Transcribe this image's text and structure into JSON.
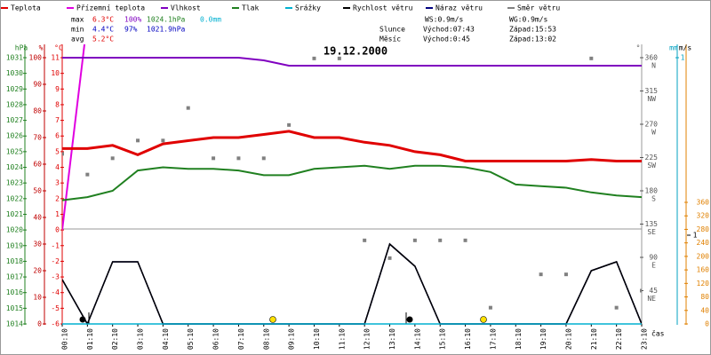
{
  "chart_data": {
    "type": "line",
    "title": "19.12.2000",
    "stats": [
      [
        "max",
        "6.3°C",
        "100%",
        "1024.1hPa",
        "0.0mm"
      ],
      [
        "min",
        "4.4°C",
        "97%",
        "1021.9hPa"
      ],
      [
        "avg",
        "5.2°C"
      ]
    ],
    "info": [
      [
        "WS:0.9m/s",
        "WG:0.9m/s"
      ],
      [
        "Slunce",
        "Východ:07:43",
        "Západ:15:53"
      ],
      [
        "Měsíc",
        "Východ:0:45",
        "Západ:13:02"
      ]
    ],
    "x_label": "čas",
    "categories": [
      "00:10",
      "01:10",
      "02:10",
      "03:10",
      "04:10",
      "05:10",
      "06:10",
      "07:10",
      "08:10",
      "09:10",
      "10:10",
      "11:10",
      "12:10",
      "13:10",
      "14:10",
      "15:10",
      "16:10",
      "17:10",
      "18:10",
      "19:10",
      "20:10",
      "21:10",
      "22:10",
      "23:10"
    ],
    "axes": {
      "pressure": {
        "label": "hPa",
        "color": "#208020",
        "ylim": [
          1014,
          1031
        ],
        "yticks": [
          1014,
          1015,
          1016,
          1017,
          1018,
          1019,
          1020,
          1021,
          1022,
          1023,
          1024,
          1025,
          1026,
          1027,
          1028,
          1029,
          1030,
          1031
        ]
      },
      "humidity": {
        "label": "%",
        "color": "#c00000",
        "ylim": [
          0,
          100
        ],
        "yticks": [
          0,
          10,
          20,
          30,
          40,
          50,
          60,
          70,
          80,
          90,
          100
        ]
      },
      "temp": {
        "label": "°C",
        "color": "#e00000",
        "ylim": [
          -6,
          11
        ],
        "yticks": [
          -6,
          -5,
          -4,
          -3,
          -2,
          -1,
          0,
          1,
          2,
          3,
          4,
          5,
          6,
          7,
          8,
          9,
          10,
          11
        ]
      },
      "direction": {
        "label": "°",
        "color": "#555555",
        "ylim": [
          0,
          360
        ],
        "yticks": [
          45,
          90,
          135,
          180,
          225,
          270,
          315,
          360
        ],
        "tick_names": [
          "NE",
          "E",
          "SE",
          "S",
          "SW",
          "W",
          "NW",
          "N"
        ]
      },
      "rain": {
        "label": "mm",
        "color": "#00a0c0",
        "ylim": [
          0,
          1
        ],
        "yticks": [
          1
        ]
      },
      "wind": {
        "label": "m/s",
        "color": "#000000",
        "ylim": [
          0,
          1
        ],
        "yticks": [
          1
        ]
      },
      "extra": {
        "color": "#e08000",
        "ylim": [
          0,
          360
        ],
        "yticks": [
          0,
          40,
          80,
          120,
          160,
          200,
          240,
          280,
          320,
          360
        ]
      }
    },
    "series": [
      {
        "name": "Teplota",
        "color": "#e00000",
        "axis": "temp",
        "values": [
          5.2,
          5.2,
          5.4,
          4.8,
          5.5,
          5.7,
          5.9,
          5.9,
          6.1,
          6.3,
          5.9,
          5.9,
          5.6,
          5.4,
          5.0,
          4.8,
          4.4,
          4.4,
          4.4,
          4.4,
          4.4,
          4.5,
          4.4,
          4.4
        ]
      },
      {
        "name": "Přízemní teplota",
        "color": "#e000e0",
        "axis": "temp",
        "values": [
          0.0,
          13.4,
          null,
          null,
          null,
          null,
          null,
          null,
          null,
          null,
          null,
          null,
          null,
          null,
          null,
          null,
          null,
          null,
          null,
          null,
          null,
          null,
          null,
          null
        ]
      },
      {
        "name": "Vlhkost",
        "color": "#8000c0",
        "axis": "humidity",
        "values": [
          100,
          100,
          100,
          100,
          100,
          100,
          100,
          100,
          99,
          97,
          97,
          97,
          97,
          97,
          97,
          97,
          97,
          97,
          97,
          97,
          97,
          97,
          97,
          97
        ]
      },
      {
        "name": "Tlak",
        "color": "#208020",
        "axis": "pressure",
        "values": [
          1021.9,
          1022.1,
          1022.5,
          1023.8,
          1024.0,
          1023.9,
          1023.9,
          1023.8,
          1023.5,
          1023.5,
          1023.9,
          1024.0,
          1024.1,
          1023.9,
          1024.1,
          1024.1,
          1024.0,
          1023.7,
          1022.9,
          1022.8,
          1022.7,
          1022.4,
          1022.2,
          1022.1
        ]
      },
      {
        "name": "Srážky",
        "color": "#00b0d0",
        "axis": "rain",
        "values": [
          0,
          0,
          0,
          0,
          0,
          0,
          0,
          0,
          0,
          0,
          0,
          0,
          0,
          0,
          0,
          0,
          0,
          0,
          0,
          0,
          0,
          0,
          0,
          0
        ]
      },
      {
        "name": "Rychlost větru",
        "color": "#000000",
        "axis": "wind",
        "values": [
          0.5,
          0,
          0.7,
          0.7,
          0,
          0,
          0,
          0,
          0,
          0,
          0,
          0,
          0,
          0.9,
          0.65,
          0,
          0,
          0,
          0,
          0,
          0,
          0.6,
          0.7,
          0
        ]
      },
      {
        "name": "Náraz větru",
        "color": "#000080",
        "axis": "wind",
        "values": [
          0.5,
          0,
          0.7,
          0.7,
          0,
          0,
          0,
          0,
          0,
          0,
          0,
          0,
          0,
          0.9,
          0.65,
          0,
          0,
          0,
          0,
          0,
          0,
          0.6,
          0.7,
          0
        ]
      },
      {
        "name": "Směr větru",
        "color": "#808080",
        "axis": "direction",
        "marker": "square",
        "values": [
          230,
          202,
          224,
          248,
          248,
          292,
          224,
          224,
          224,
          269,
          359,
          359,
          113,
          89,
          113,
          113,
          113,
          22,
          null,
          67,
          67,
          359,
          22,
          45
        ]
      }
    ]
  }
}
